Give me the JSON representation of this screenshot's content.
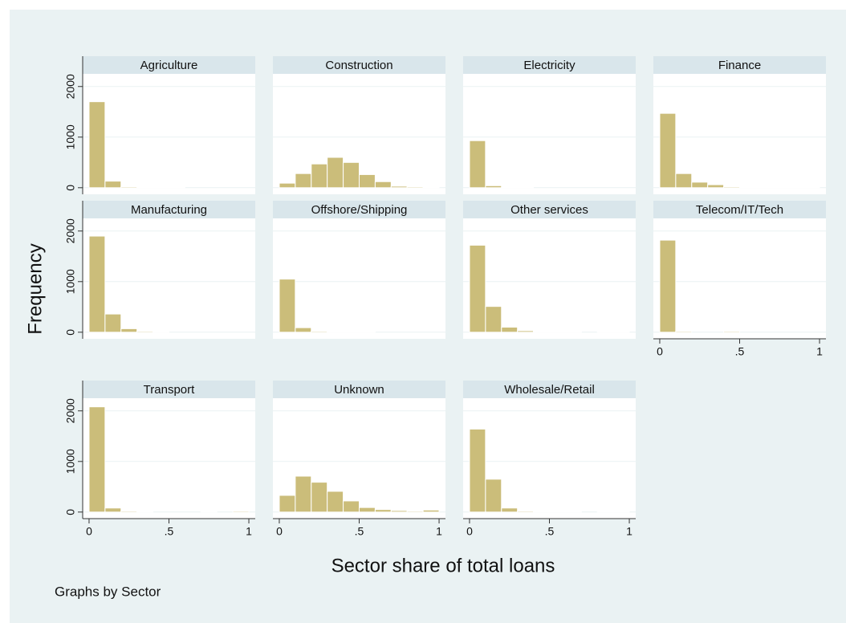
{
  "chart_data": {
    "type": "histogram",
    "x_label": "Sector share of total loans",
    "y_label": "Frequency",
    "note": "Graphs by Sector",
    "color": "#cbbd7a",
    "bins": [
      0,
      0.1,
      0.2,
      0.3,
      0.4,
      0.5,
      0.6,
      0.7,
      0.8,
      0.9,
      1
    ],
    "xlim": [
      -0.04,
      1.04
    ],
    "xticks": [
      0,
      {
        "value": 0.5,
        "label": ".5"
      },
      1
    ],
    "ylim": [
      -130,
      2250
    ],
    "yticks": [
      0,
      1000,
      2000
    ],
    "grid": true,
    "panels": [
      {
        "title": "Agriculture",
        "counts": [
          1700,
          130,
          20,
          15,
          10,
          5,
          0,
          0,
          0,
          0
        ]
      },
      {
        "title": "Construction",
        "counts": [
          90,
          280,
          470,
          600,
          500,
          260,
          120,
          30,
          20,
          10
        ]
      },
      {
        "title": "Electricity",
        "counts": [
          930,
          40,
          10,
          5,
          0,
          0,
          0,
          0,
          0,
          0
        ]
      },
      {
        "title": "Finance",
        "counts": [
          1470,
          280,
          110,
          60,
          20,
          10,
          10,
          10,
          10,
          10
        ]
      },
      {
        "title": "Manufacturing",
        "counts": [
          1900,
          360,
          70,
          20,
          10,
          0,
          0,
          0,
          0,
          0
        ]
      },
      {
        "title": "Offshore/Shipping",
        "counts": [
          1050,
          90,
          20,
          10,
          10,
          5,
          0,
          0,
          0,
          0
        ]
      },
      {
        "title": "Other services",
        "counts": [
          1720,
          510,
          100,
          30,
          15,
          10,
          10,
          0,
          10,
          10
        ]
      },
      {
        "title": "Telecom/IT/Tech",
        "counts": [
          1820,
          20,
          0,
          0,
          20,
          0,
          0,
          0,
          0,
          0
        ]
      },
      {
        "title": "Transport",
        "counts": [
          2080,
          80,
          20,
          10,
          0,
          0,
          0,
          10,
          0,
          20
        ]
      },
      {
        "title": "Unknown",
        "counts": [
          330,
          710,
          590,
          410,
          220,
          90,
          50,
          30,
          20,
          40
        ]
      },
      {
        "title": "Wholesale/Retail",
        "counts": [
          1640,
          650,
          80,
          20,
          10,
          10,
          10,
          0,
          10,
          10
        ]
      }
    ]
  }
}
